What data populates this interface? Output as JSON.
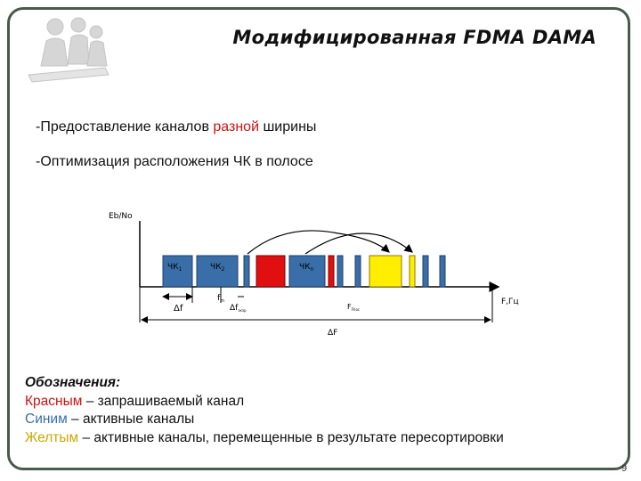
{
  "slide": {
    "title": "Модифицированная FDMA DAMA",
    "page_number": "9"
  },
  "bullets": [
    {
      "before": "-Предоставление каналов ",
      "highlight": "разной",
      "after": " ширины"
    },
    {
      "text": "-Оптимизация расположения ЧК в полосе"
    }
  ],
  "diagram": {
    "y_axis_label": "Eb/No",
    "x_axis_label": "F,Гц",
    "channel_labels": [
      "ЧК",
      "ЧК",
      "ЧК"
    ],
    "channel_subscripts": [
      "1",
      "2",
      "n"
    ],
    "delta_f": "Δf",
    "f_sub_label": "f",
    "f_sub_sub": "m",
    "delta_f_guard": "Δf",
    "delta_f_guard_sub": "зкзр",
    "f_center": "F",
    "f_center_sub": "Fhoc",
    "band_label": "ΔF",
    "colors": {
      "active_channel": "#3a6ea8",
      "requested_channel": "#e01010",
      "moved_channel": "#ffee00"
    }
  },
  "legend": {
    "header": "Обозначения:",
    "items": [
      {
        "colored": "Красным",
        "rest": " – запрашиваемый канал"
      },
      {
        "colored": "Синим",
        "rest": " – активные каналы"
      },
      {
        "colored": "Желтым",
        "rest": " – активные каналы, перемещенные в результате пересортировки"
      }
    ]
  }
}
